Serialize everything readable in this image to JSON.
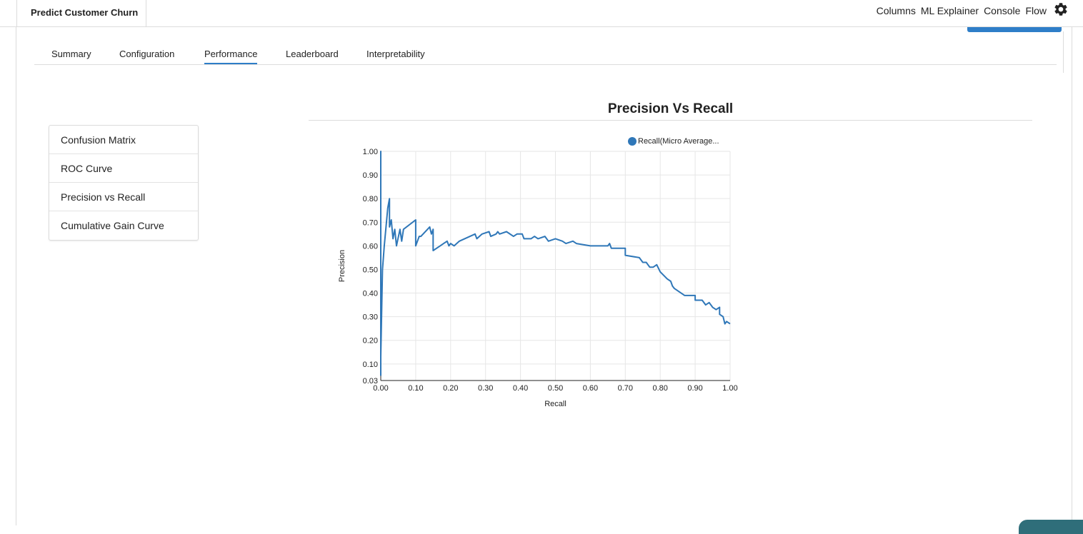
{
  "project": {
    "title": "Predict Customer Churn"
  },
  "top_nav": {
    "items": [
      "Columns",
      "ML Explainer",
      "Console",
      "Flow"
    ],
    "settings_icon": "gear-icon"
  },
  "tabs": [
    {
      "label": "Summary",
      "active": false
    },
    {
      "label": "Configuration",
      "active": false
    },
    {
      "label": "Performance",
      "active": true
    },
    {
      "label": "Leaderboard",
      "active": false
    },
    {
      "label": "Interpretability",
      "active": false
    }
  ],
  "side_menu": {
    "items": [
      "Confusion Matrix",
      "ROC Curve",
      "Precision vs Recall",
      "Cumulative Gain Curve"
    ]
  },
  "colors": {
    "accent": "#2e7ec8",
    "series": "#2f77b8",
    "grid": "#e6e6e6",
    "bottom_button": "#2f6e7a"
  },
  "chart_data": {
    "type": "line",
    "title": "Precision Vs Recall",
    "xlabel": "Recall",
    "ylabel": "Precision",
    "xlim": [
      0,
      1
    ],
    "ylim": [
      0.03,
      1
    ],
    "x_ticks": [
      "0.00",
      "0.10",
      "0.20",
      "0.30",
      "0.40",
      "0.50",
      "0.60",
      "0.70",
      "0.80",
      "0.90",
      "1.00"
    ],
    "y_ticks": [
      "0.03",
      "0.10",
      "0.20",
      "0.30",
      "0.40",
      "0.50",
      "0.60",
      "0.70",
      "0.80",
      "0.90",
      "1.00"
    ],
    "grid": true,
    "legend_position": "top-right",
    "series": [
      {
        "name": "Recall(Micro Average...",
        "points": [
          [
            0.0,
            0.05
          ],
          [
            0.0,
            1.0
          ],
          [
            0.0,
            0.13
          ],
          [
            0.005,
            0.5
          ],
          [
            0.01,
            0.6
          ],
          [
            0.02,
            0.76
          ],
          [
            0.025,
            0.8
          ],
          [
            0.025,
            0.68
          ],
          [
            0.03,
            0.71
          ],
          [
            0.035,
            0.63
          ],
          [
            0.04,
            0.67
          ],
          [
            0.045,
            0.6
          ],
          [
            0.055,
            0.67
          ],
          [
            0.06,
            0.62
          ],
          [
            0.065,
            0.67
          ],
          [
            0.1,
            0.71
          ],
          [
            0.1,
            0.6
          ],
          [
            0.11,
            0.64
          ],
          [
            0.115,
            0.64
          ],
          [
            0.14,
            0.68
          ],
          [
            0.145,
            0.65
          ],
          [
            0.15,
            0.67
          ],
          [
            0.15,
            0.58
          ],
          [
            0.17,
            0.6
          ],
          [
            0.18,
            0.61
          ],
          [
            0.19,
            0.62
          ],
          [
            0.195,
            0.6
          ],
          [
            0.2,
            0.61
          ],
          [
            0.21,
            0.6
          ],
          [
            0.225,
            0.62
          ],
          [
            0.27,
            0.65
          ],
          [
            0.275,
            0.63
          ],
          [
            0.29,
            0.65
          ],
          [
            0.31,
            0.66
          ],
          [
            0.315,
            0.64
          ],
          [
            0.33,
            0.65
          ],
          [
            0.335,
            0.66
          ],
          [
            0.34,
            0.65
          ],
          [
            0.36,
            0.66
          ],
          [
            0.38,
            0.64
          ],
          [
            0.39,
            0.65
          ],
          [
            0.405,
            0.65
          ],
          [
            0.41,
            0.63
          ],
          [
            0.43,
            0.63
          ],
          [
            0.44,
            0.64
          ],
          [
            0.45,
            0.63
          ],
          [
            0.47,
            0.64
          ],
          [
            0.48,
            0.62
          ],
          [
            0.5,
            0.63
          ],
          [
            0.52,
            0.62
          ],
          [
            0.53,
            0.61
          ],
          [
            0.55,
            0.62
          ],
          [
            0.56,
            0.61
          ],
          [
            0.6,
            0.6
          ],
          [
            0.64,
            0.6
          ],
          [
            0.65,
            0.6
          ],
          [
            0.655,
            0.61
          ],
          [
            0.66,
            0.59
          ],
          [
            0.7,
            0.59
          ],
          [
            0.7,
            0.56
          ],
          [
            0.74,
            0.55
          ],
          [
            0.75,
            0.53
          ],
          [
            0.76,
            0.53
          ],
          [
            0.77,
            0.51
          ],
          [
            0.78,
            0.51
          ],
          [
            0.79,
            0.52
          ],
          [
            0.8,
            0.49
          ],
          [
            0.82,
            0.46
          ],
          [
            0.83,
            0.45
          ],
          [
            0.835,
            0.43
          ],
          [
            0.84,
            0.42
          ],
          [
            0.86,
            0.4
          ],
          [
            0.87,
            0.39
          ],
          [
            0.9,
            0.39
          ],
          [
            0.9,
            0.37
          ],
          [
            0.92,
            0.37
          ],
          [
            0.93,
            0.35
          ],
          [
            0.94,
            0.36
          ],
          [
            0.95,
            0.34
          ],
          [
            0.96,
            0.33
          ],
          [
            0.97,
            0.34
          ],
          [
            0.97,
            0.31
          ],
          [
            0.98,
            0.3
          ],
          [
            0.985,
            0.27
          ],
          [
            0.99,
            0.28
          ],
          [
            1.0,
            0.27
          ]
        ]
      }
    ]
  }
}
